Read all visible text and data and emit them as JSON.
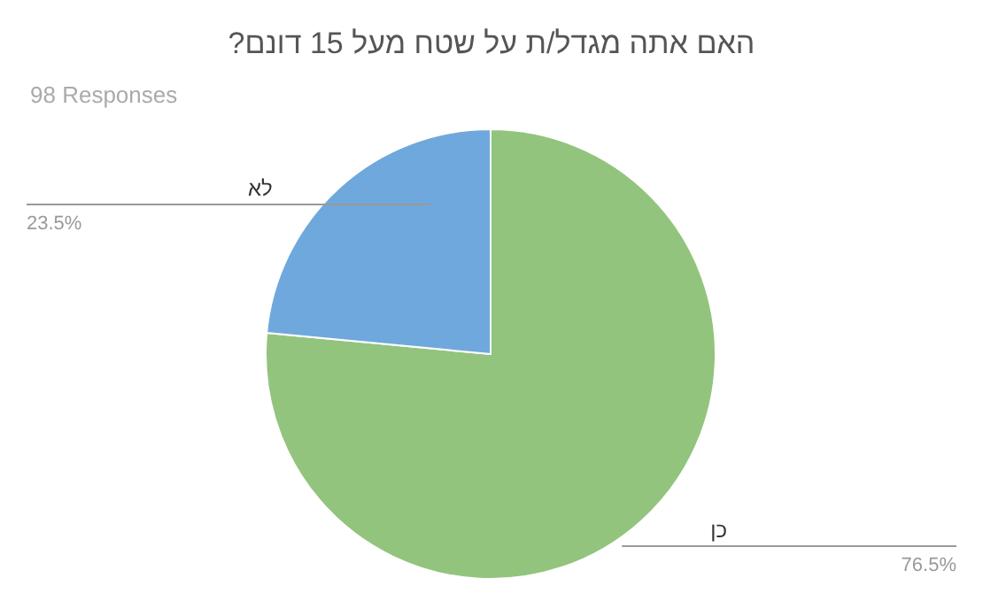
{
  "chart_data": {
    "type": "pie",
    "title": "האם אתה מגדל/ת על שטח מעל 15 דונם?",
    "subtitle": "98 Responses",
    "categories": [
      "כן",
      "לא"
    ],
    "values": [
      76.5,
      23.5
    ],
    "value_labels": [
      "76.5%",
      "23.5%"
    ],
    "colors": [
      "#93c47d",
      "#6fa8dc"
    ]
  }
}
